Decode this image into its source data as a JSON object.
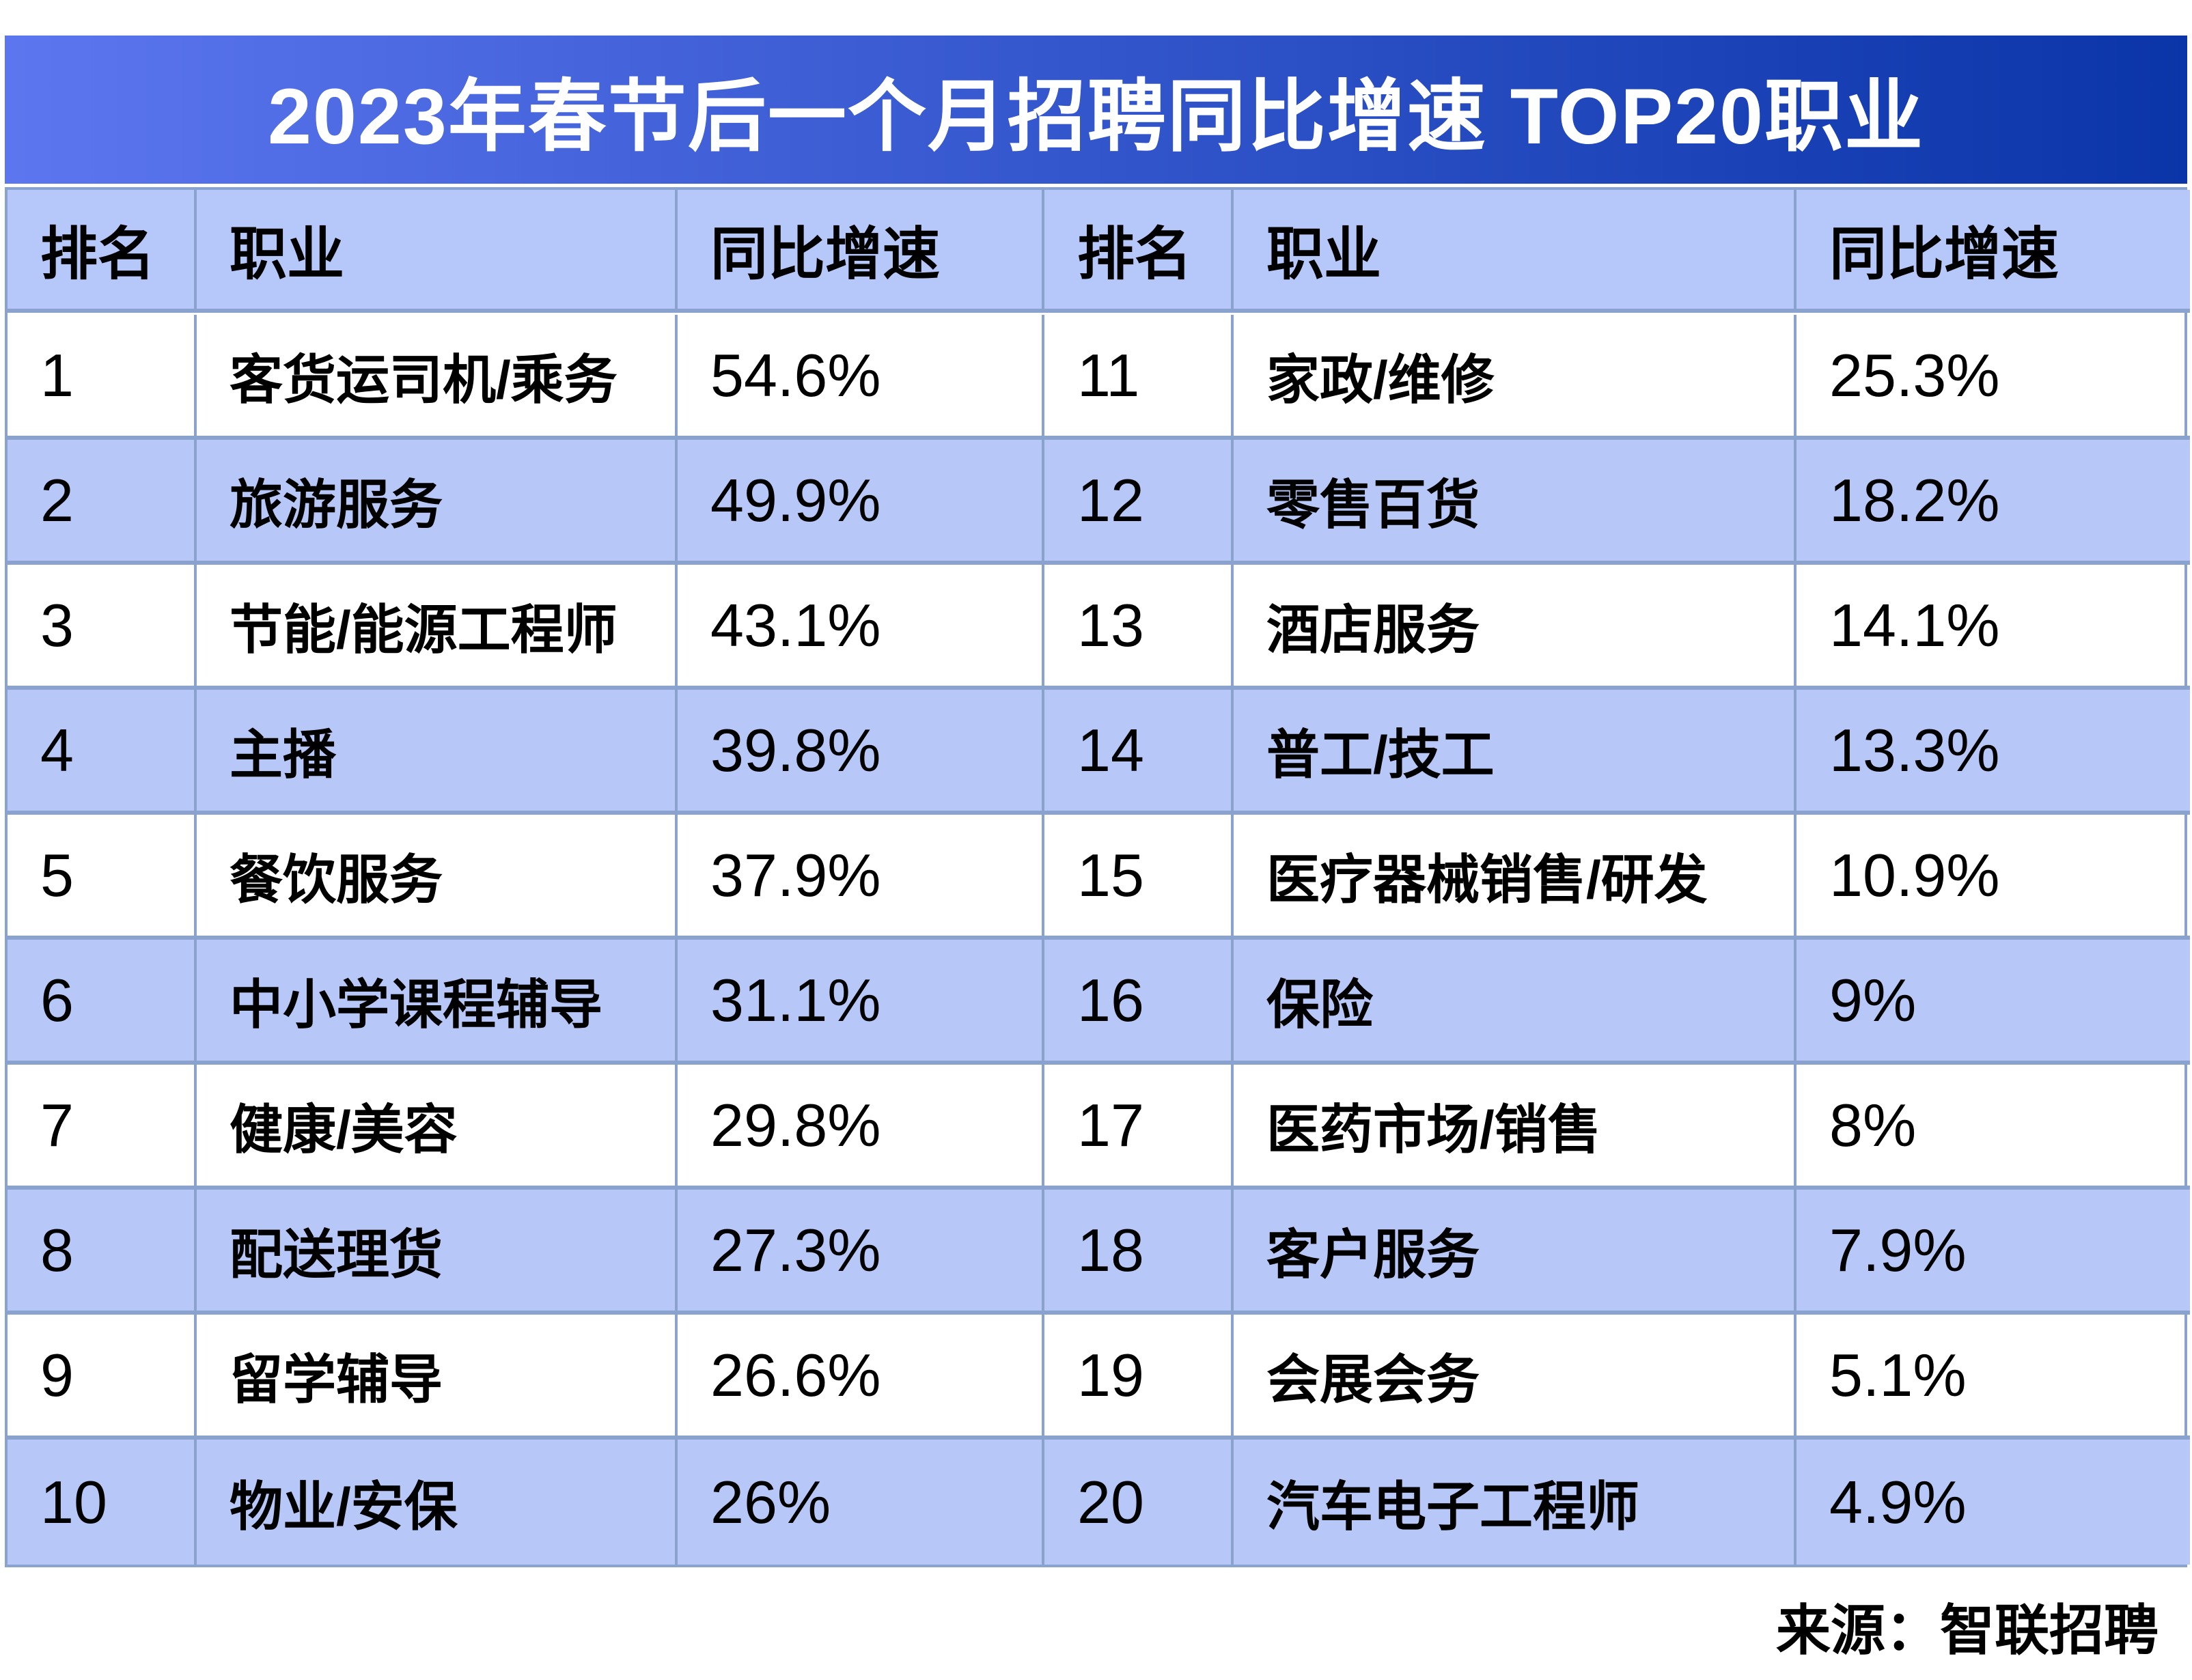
{
  "title": "2023年春节后一个月招聘同比增速 TOP20职业",
  "source": "来源：智联招聘",
  "table": {
    "headers": {
      "rank": "排名",
      "occupation": "职业",
      "growth": "同比增速"
    },
    "left_rows": [
      {
        "rank": "1",
        "occupation": "客货运司机/乘务",
        "growth": "54.6%"
      },
      {
        "rank": "2",
        "occupation": "旅游服务",
        "growth": "49.9%"
      },
      {
        "rank": "3",
        "occupation": "节能/能源工程师",
        "growth": "43.1%"
      },
      {
        "rank": "4",
        "occupation": "主播",
        "growth": "39.8%"
      },
      {
        "rank": "5",
        "occupation": "餐饮服务",
        "growth": "37.9%"
      },
      {
        "rank": "6",
        "occupation": "中小学课程辅导",
        "growth": "31.1%"
      },
      {
        "rank": "7",
        "occupation": "健康/美容",
        "growth": "29.8%"
      },
      {
        "rank": "8",
        "occupation": "配送理货",
        "growth": "27.3%"
      },
      {
        "rank": "9",
        "occupation": "留学辅导",
        "growth": "26.6%"
      },
      {
        "rank": "10",
        "occupation": "物业/安保",
        "growth": "26%"
      }
    ],
    "right_rows": [
      {
        "rank": "11",
        "occupation": "家政/维修",
        "growth": "25.3%"
      },
      {
        "rank": "12",
        "occupation": "零售百货",
        "growth": "18.2%"
      },
      {
        "rank": "13",
        "occupation": "酒店服务",
        "growth": "14.1%"
      },
      {
        "rank": "14",
        "occupation": "普工/技工",
        "growth": "13.3%"
      },
      {
        "rank": "15",
        "occupation": "医疗器械销售/研发",
        "growth": "10.9%"
      },
      {
        "rank": "16",
        "occupation": "保险",
        "growth": "9%"
      },
      {
        "rank": "17",
        "occupation": "医药市场/销售",
        "growth": "8%"
      },
      {
        "rank": "18",
        "occupation": "客户服务",
        "growth": "7.9%"
      },
      {
        "rank": "19",
        "occupation": "会展会务",
        "growth": "5.1%"
      },
      {
        "rank": "20",
        "occupation": "汽车电子工程师",
        "growth": "4.9%"
      }
    ]
  },
  "colors": {
    "title_gradient_start": "#5c76ef",
    "title_gradient_end": "#0a35a8",
    "header_bg": "#b6c7fa",
    "row_alt_bg": "#b7c8f8",
    "row_bg": "#ffffff",
    "border": "#89a3ce",
    "title_text": "#ffffff",
    "cell_text": "#000000"
  },
  "chart_data": {
    "type": "table",
    "title": "2023年春节后一个月招聘同比增速 TOP20职业",
    "columns": [
      "排名",
      "职业",
      "同比增速"
    ],
    "rows": [
      [
        1,
        "客货运司机/乘务",
        54.6
      ],
      [
        2,
        "旅游服务",
        49.9
      ],
      [
        3,
        "节能/能源工程师",
        43.1
      ],
      [
        4,
        "主播",
        39.8
      ],
      [
        5,
        "餐饮服务",
        37.9
      ],
      [
        6,
        "中小学课程辅导",
        31.1
      ],
      [
        7,
        "健康/美容",
        29.8
      ],
      [
        8,
        "配送理货",
        27.3
      ],
      [
        9,
        "留学辅导",
        26.6
      ],
      [
        10,
        "物业/安保",
        26.0
      ],
      [
        11,
        "家政/维修",
        25.3
      ],
      [
        12,
        "零售百货",
        18.2
      ],
      [
        13,
        "酒店服务",
        14.1
      ],
      [
        14,
        "普工/技工",
        13.3
      ],
      [
        15,
        "医疗器械销售/研发",
        10.9
      ],
      [
        16,
        "保险",
        9.0
      ],
      [
        17,
        "医药市场/销售",
        8.0
      ],
      [
        18,
        "客户服务",
        7.9
      ],
      [
        19,
        "会展会务",
        5.1
      ],
      [
        20,
        "汽车电子工程师",
        4.9
      ]
    ],
    "value_unit": "percent",
    "source": "来源：智联招聘"
  }
}
